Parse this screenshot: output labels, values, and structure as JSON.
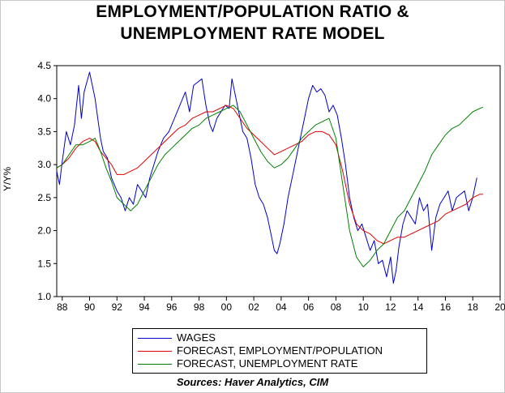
{
  "chart_data": {
    "type": "line",
    "title_line1": "EMPLOYMENT/POPULATION RATIO &",
    "title_line2": "UNEMPLOYMENT RATE MODEL",
    "ylabel": "Y/Y%",
    "xlabel": "",
    "ylim": [
      1.0,
      4.5
    ],
    "yticks": [
      "1.0",
      "1.5",
      "2.0",
      "2.5",
      "3.0",
      "3.5",
      "4.0",
      "4.5"
    ],
    "xlim": [
      1987.6,
      2020.0
    ],
    "xtick_positions": [
      1988,
      1990,
      1992,
      1994,
      1996,
      1998,
      2000,
      2002,
      2004,
      2006,
      2008,
      2010,
      2012,
      2014,
      2016,
      2018,
      2020
    ],
    "xtick_labels": [
      "88",
      "90",
      "92",
      "94",
      "96",
      "98",
      "00",
      "02",
      "04",
      "06",
      "08",
      "10",
      "12",
      "14",
      "16",
      "18",
      "20"
    ],
    "grid": "horizontal",
    "legend_position": "bottom",
    "source": "Sources:  Haver Analytics, CIM",
    "series": [
      {
        "name": "WAGES",
        "color": "#0000cc",
        "x": [
          1987.6,
          1987.8,
          1988.0,
          1988.3,
          1988.6,
          1988.9,
          1989.2,
          1989.4,
          1989.6,
          1989.8,
          1990.0,
          1990.2,
          1990.4,
          1990.6,
          1990.8,
          1991.0,
          1991.3,
          1991.6,
          1992.0,
          1992.3,
          1992.6,
          1992.9,
          1993.2,
          1993.5,
          1993.8,
          1994.1,
          1994.4,
          1994.7,
          1995.0,
          1995.4,
          1995.8,
          1996.2,
          1996.6,
          1997.0,
          1997.3,
          1997.6,
          1997.9,
          1998.2,
          1998.5,
          1998.8,
          1999.0,
          1999.3,
          1999.6,
          1999.9,
          2000.2,
          2000.4,
          2000.6,
          2000.9,
          2001.2,
          2001.5,
          2001.8,
          2002.1,
          2002.4,
          2002.7,
          2003.0,
          2003.3,
          2003.5,
          2003.7,
          2003.9,
          2004.2,
          2004.5,
          2004.9,
          2005.3,
          2005.7,
          2006.0,
          2006.3,
          2006.6,
          2006.9,
          2007.2,
          2007.5,
          2007.8,
          2008.1,
          2008.4,
          2008.7,
          2009.0,
          2009.3,
          2009.6,
          2009.9,
          2010.2,
          2010.5,
          2010.8,
          2011.1,
          2011.4,
          2011.7,
          2012.0,
          2012.2,
          2012.4,
          2012.6,
          2012.9,
          2013.2,
          2013.5,
          2013.8,
          2014.1,
          2014.4,
          2014.7,
          2015.0,
          2015.3,
          2015.6,
          2015.9,
          2016.2,
          2016.5,
          2016.8,
          2017.1,
          2017.4,
          2017.7,
          2018.0,
          2018.3
        ],
        "values": [
          2.9,
          2.7,
          3.05,
          3.5,
          3.3,
          3.6,
          4.2,
          3.7,
          4.1,
          4.25,
          4.4,
          4.2,
          4.0,
          3.7,
          3.4,
          3.2,
          3.1,
          2.8,
          2.6,
          2.5,
          2.3,
          2.5,
          2.4,
          2.7,
          2.6,
          2.5,
          2.8,
          3.0,
          3.2,
          3.4,
          3.5,
          3.7,
          3.9,
          4.1,
          3.8,
          4.2,
          4.25,
          4.3,
          3.9,
          3.6,
          3.5,
          3.7,
          3.8,
          3.9,
          3.85,
          4.3,
          4.1,
          3.8,
          3.5,
          3.4,
          3.1,
          2.7,
          2.5,
          2.4,
          2.2,
          1.9,
          1.7,
          1.65,
          1.8,
          2.1,
          2.5,
          2.9,
          3.3,
          3.7,
          4.0,
          4.2,
          4.1,
          4.15,
          4.05,
          3.8,
          3.9,
          3.75,
          3.4,
          3.0,
          2.5,
          2.2,
          2.0,
          2.1,
          1.9,
          1.7,
          1.85,
          1.5,
          1.55,
          1.3,
          1.6,
          1.2,
          1.4,
          1.75,
          2.1,
          2.3,
          2.2,
          2.1,
          2.5,
          2.3,
          2.4,
          1.7,
          2.2,
          2.4,
          2.5,
          2.6,
          2.3,
          2.5,
          2.55,
          2.6,
          2.3,
          2.5,
          2.8
        ]
      },
      {
        "name": "FORECAST, EMPLOYMENT/POPULATION",
        "color": "#e00000",
        "x": [
          1987.6,
          1988.0,
          1988.5,
          1989.0,
          1989.5,
          1990.0,
          1990.4,
          1990.8,
          1991.2,
          1991.6,
          1992.0,
          1992.5,
          1993.0,
          1993.5,
          1994.0,
          1994.5,
          1995.0,
          1995.5,
          1996.0,
          1996.5,
          1997.0,
          1997.5,
          1998.0,
          1998.5,
          1999.0,
          1999.5,
          2000.0,
          2000.5,
          2001.0,
          2001.5,
          2002.0,
          2002.5,
          2003.0,
          2003.5,
          2004.0,
          2004.5,
          2005.0,
          2005.5,
          2006.0,
          2006.5,
          2007.0,
          2007.5,
          2008.0,
          2008.5,
          2009.0,
          2009.5,
          2010.0,
          2010.5,
          2011.0,
          2011.5,
          2012.0,
          2012.5,
          2013.0,
          2013.5,
          2014.0,
          2014.5,
          2015.0,
          2015.5,
          2016.0,
          2016.5,
          2017.0,
          2017.5,
          2018.0,
          2018.5,
          2018.75
        ],
        "values": [
          2.95,
          3.0,
          3.1,
          3.25,
          3.35,
          3.4,
          3.35,
          3.2,
          3.1,
          3.0,
          2.85,
          2.85,
          2.9,
          2.95,
          3.05,
          3.15,
          3.25,
          3.35,
          3.45,
          3.55,
          3.6,
          3.7,
          3.75,
          3.8,
          3.8,
          3.85,
          3.9,
          3.85,
          3.7,
          3.55,
          3.45,
          3.35,
          3.25,
          3.15,
          3.2,
          3.25,
          3.3,
          3.35,
          3.45,
          3.5,
          3.5,
          3.45,
          3.3,
          2.9,
          2.4,
          2.1,
          2.0,
          1.95,
          1.85,
          1.8,
          1.85,
          1.9,
          1.9,
          1.95,
          2.0,
          2.05,
          2.1,
          2.15,
          2.25,
          2.3,
          2.35,
          2.4,
          2.5,
          2.55,
          2.55
        ]
      },
      {
        "name": "FORECAST, UNEMPLOYMENT RATE",
        "color": "#008000",
        "x": [
          1987.6,
          1988.0,
          1988.5,
          1989.0,
          1989.5,
          1990.0,
          1990.4,
          1990.8,
          1991.2,
          1991.6,
          1992.0,
          1992.5,
          1993.0,
          1993.5,
          1994.0,
          1994.5,
          1995.0,
          1995.5,
          1996.0,
          1996.5,
          1997.0,
          1997.5,
          1998.0,
          1998.5,
          1999.0,
          1999.5,
          2000.0,
          2000.5,
          2001.0,
          2001.5,
          2002.0,
          2002.5,
          2003.0,
          2003.5,
          2004.0,
          2004.5,
          2005.0,
          2005.5,
          2006.0,
          2006.5,
          2007.0,
          2007.5,
          2008.0,
          2008.5,
          2009.0,
          2009.5,
          2010.0,
          2010.5,
          2011.0,
          2011.5,
          2012.0,
          2012.5,
          2013.0,
          2013.5,
          2014.0,
          2014.5,
          2015.0,
          2015.5,
          2016.0,
          2016.5,
          2017.0,
          2017.5,
          2018.0,
          2018.5,
          2018.75
        ],
        "values": [
          2.95,
          3.0,
          3.15,
          3.3,
          3.3,
          3.35,
          3.4,
          3.2,
          2.95,
          2.75,
          2.5,
          2.4,
          2.3,
          2.4,
          2.6,
          2.8,
          3.0,
          3.15,
          3.25,
          3.35,
          3.45,
          3.55,
          3.6,
          3.7,
          3.75,
          3.8,
          3.85,
          3.9,
          3.8,
          3.6,
          3.4,
          3.2,
          3.05,
          2.95,
          3.0,
          3.1,
          3.25,
          3.4,
          3.5,
          3.6,
          3.65,
          3.7,
          3.4,
          2.7,
          2.0,
          1.6,
          1.45,
          1.55,
          1.7,
          1.8,
          2.0,
          2.2,
          2.3,
          2.5,
          2.7,
          2.9,
          3.15,
          3.3,
          3.45,
          3.55,
          3.6,
          3.7,
          3.8,
          3.85,
          3.87
        ]
      }
    ]
  }
}
